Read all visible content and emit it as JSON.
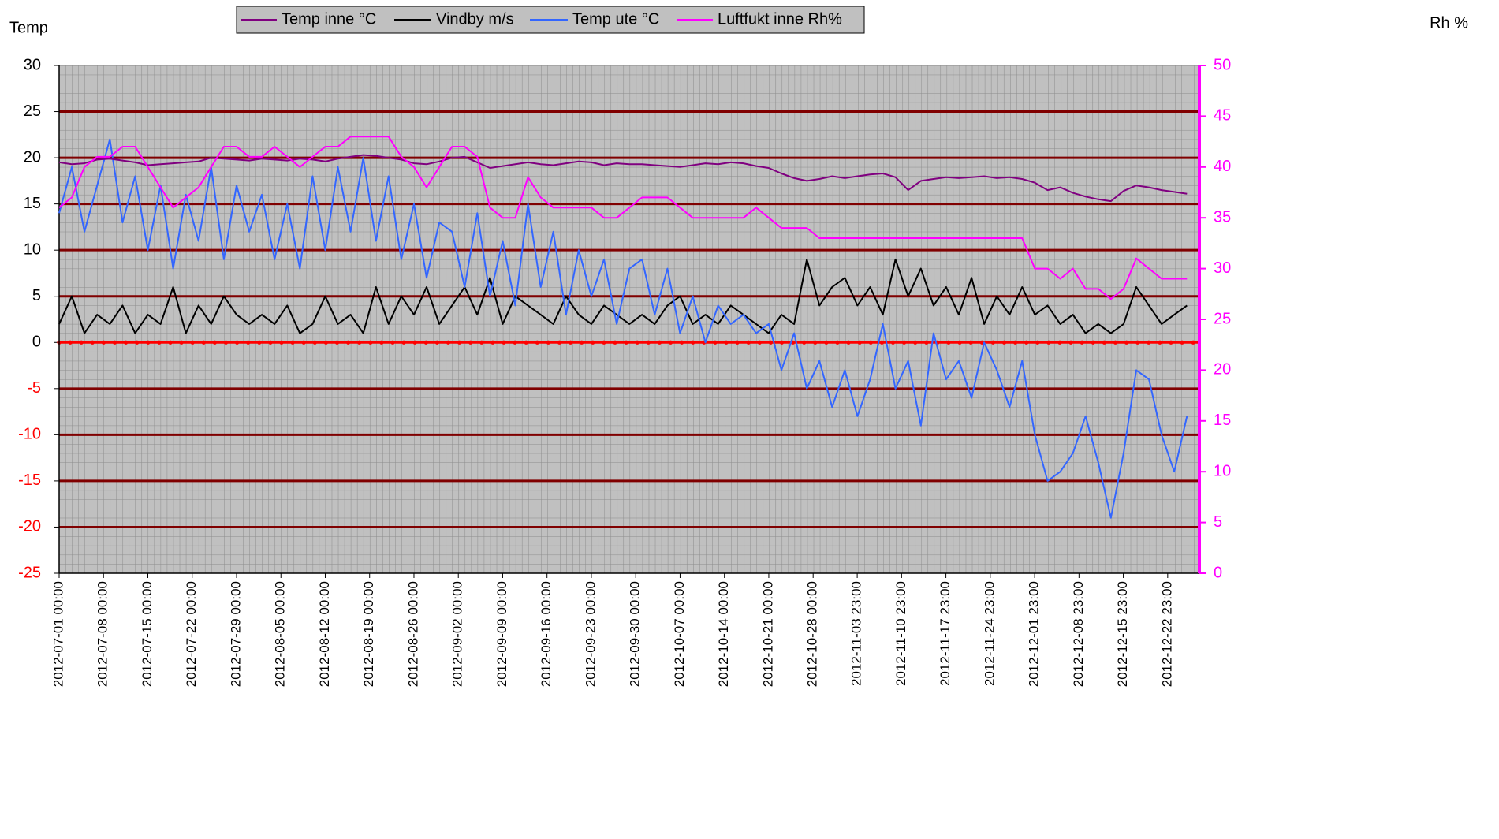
{
  "chart_data": {
    "type": "line",
    "ylabel": "Temp",
    "y2label": "Rh %",
    "x": [
      "2012-07-01 00:00",
      "2012-07-03 00:00",
      "2012-07-05 00:00",
      "2012-07-07 00:00",
      "2012-07-09 00:00",
      "2012-07-11 00:00",
      "2012-07-13 00:00",
      "2012-07-15 00:00",
      "2012-07-17 00:00",
      "2012-07-19 00:00",
      "2012-07-21 00:00",
      "2012-07-23 00:00",
      "2012-07-25 00:00",
      "2012-07-27 00:00",
      "2012-07-29 00:00",
      "2012-07-31 00:00",
      "2012-08-02 00:00",
      "2012-08-04 00:00",
      "2012-08-06 00:00",
      "2012-08-08 00:00",
      "2012-08-10 00:00",
      "2012-08-12 00:00",
      "2012-08-14 00:00",
      "2012-08-16 00:00",
      "2012-08-18 00:00",
      "2012-08-20 00:00",
      "2012-08-22 00:00",
      "2012-08-24 00:00",
      "2012-08-26 00:00",
      "2012-08-28 00:00",
      "2012-08-30 00:00",
      "2012-09-01 00:00",
      "2012-09-03 00:00",
      "2012-09-05 00:00",
      "2012-09-07 00:00",
      "2012-09-09 00:00",
      "2012-09-11 00:00",
      "2012-09-13 00:00",
      "2012-09-15 00:00",
      "2012-09-17 00:00",
      "2012-09-19 00:00",
      "2012-09-21 00:00",
      "2012-09-23 00:00",
      "2012-09-25 00:00",
      "2012-09-27 00:00",
      "2012-09-29 00:00",
      "2012-10-01 00:00",
      "2012-10-03 00:00",
      "2012-10-05 00:00",
      "2012-10-07 00:00",
      "2012-10-09 00:00",
      "2012-10-11 00:00",
      "2012-10-13 00:00",
      "2012-10-15 00:00",
      "2012-10-17 00:00",
      "2012-10-19 00:00",
      "2012-10-21 00:00",
      "2012-10-23 00:00",
      "2012-10-25 00:00",
      "2012-10-27 00:00",
      "2012-10-29 00:00",
      "2012-10-31 00:00",
      "2012-11-02 00:00",
      "2012-11-04 00:00",
      "2012-11-06 00:00",
      "2012-11-08 00:00",
      "2012-11-10 00:00",
      "2012-11-12 00:00",
      "2012-11-14 00:00",
      "2012-11-16 00:00",
      "2012-11-18 00:00",
      "2012-11-20 00:00",
      "2012-11-22 00:00",
      "2012-11-24 00:00",
      "2012-11-26 00:00",
      "2012-11-28 00:00",
      "2012-11-30 00:00",
      "2012-12-02 00:00",
      "2012-12-04 00:00",
      "2012-12-06 00:00",
      "2012-12-08 00:00",
      "2012-12-10 00:00",
      "2012-12-12 00:00",
      "2012-12-14 00:00",
      "2012-12-16 00:00",
      "2012-12-18 00:00",
      "2012-12-20 00:00",
      "2012-12-22 00:00",
      "2012-12-24 00:00",
      "2012-12-26 00:00"
    ],
    "series": [
      {
        "name": "Temp inne °C",
        "color": "#800080",
        "values": [
          19.5,
          19.3,
          19.4,
          19.8,
          19.9,
          19.7,
          19.5,
          19.2,
          19.3,
          19.4,
          19.5,
          19.6,
          20.0,
          19.9,
          19.8,
          19.7,
          19.9,
          19.8,
          19.7,
          19.9,
          19.8,
          19.6,
          19.9,
          20.1,
          20.3,
          20.2,
          20.0,
          19.8,
          19.4,
          19.3,
          19.6,
          20.0,
          20.1,
          19.5,
          18.9,
          19.1,
          19.3,
          19.5,
          19.3,
          19.2,
          19.4,
          19.6,
          19.5,
          19.2,
          19.4,
          19.3,
          19.3,
          19.2,
          19.1,
          19.0,
          19.2,
          19.4,
          19.3,
          19.5,
          19.4,
          19.1,
          18.9,
          18.3,
          17.8,
          17.5,
          17.7,
          18.0,
          17.8,
          18.0,
          18.2,
          18.3,
          17.9,
          16.5,
          17.5,
          17.7,
          17.9,
          17.8,
          17.9,
          18.0,
          17.8,
          17.9,
          17.7,
          17.3,
          16.5,
          16.8,
          16.2,
          15.8,
          15.5,
          15.3,
          16.4,
          17.0,
          16.8,
          16.5,
          16.3,
          16.1
        ]
      },
      {
        "name": "Vindby m/s",
        "color": "#000000",
        "values": [
          2,
          5,
          1,
          3,
          2,
          4,
          1,
          3,
          2,
          6,
          1,
          4,
          2,
          5,
          3,
          2,
          3,
          2,
          4,
          1,
          2,
          5,
          2,
          3,
          1,
          6,
          2,
          5,
          3,
          6,
          2,
          4,
          6,
          3,
          7,
          2,
          5,
          4,
          3,
          2,
          5,
          3,
          2,
          4,
          3,
          2,
          3,
          2,
          4,
          5,
          2,
          3,
          2,
          4,
          3,
          2,
          1,
          3,
          2,
          9,
          4,
          6,
          7,
          4,
          6,
          3,
          9,
          5,
          8,
          4,
          6,
          3,
          7,
          2,
          5,
          3,
          6,
          3,
          4,
          2,
          3,
          1,
          2,
          1,
          2,
          6,
          4,
          2,
          3,
          4
        ]
      },
      {
        "name": "Temp ute °C",
        "color": "#3366ff",
        "values": [
          14,
          19,
          12,
          17,
          22,
          13,
          18,
          10,
          17,
          8,
          16,
          11,
          19,
          9,
          17,
          12,
          16,
          9,
          15,
          8,
          18,
          10,
          19,
          12,
          20,
          11,
          18,
          9,
          15,
          7,
          13,
          12,
          6,
          14,
          5,
          11,
          4,
          15,
          6,
          12,
          3,
          10,
          5,
          9,
          2,
          8,
          9,
          3,
          8,
          1,
          5,
          0,
          4,
          2,
          3,
          1,
          2,
          -3,
          1,
          -5,
          -2,
          -7,
          -3,
          -8,
          -4,
          2,
          -5,
          -2,
          -9,
          1,
          -4,
          -2,
          -6,
          0,
          -3,
          -7,
          -2,
          -10,
          -15,
          -14,
          -12,
          -8,
          -13,
          -19,
          -12,
          -3,
          -4,
          -10,
          -14,
          -8
        ]
      },
      {
        "name": "Luftfukt inne Rh%",
        "color": "#ff00ff",
        "axis": "y2",
        "values": [
          36,
          37,
          40,
          41,
          41,
          42,
          42,
          40,
          38,
          36,
          37,
          38,
          40,
          42,
          42,
          41,
          41,
          42,
          41,
          40,
          41,
          42,
          42,
          43,
          43,
          43,
          43,
          41,
          40,
          38,
          40,
          42,
          42,
          41,
          36,
          35,
          35,
          39,
          37,
          36,
          36,
          36,
          36,
          35,
          35,
          36,
          37,
          37,
          37,
          36,
          35,
          35,
          35,
          35,
          35,
          36,
          35,
          34,
          34,
          34,
          33,
          33,
          33,
          33,
          33,
          33,
          33,
          33,
          33,
          33,
          33,
          33,
          33,
          33,
          33,
          33,
          33,
          30,
          30,
          29,
          30,
          28,
          28,
          27,
          28,
          31,
          30,
          29,
          29,
          29
        ]
      }
    ],
    "xlim": [
      "2012-07-01 00:00",
      "2012-12-27 23:00"
    ],
    "xticks": [
      "2012-07-01 00:00",
      "2012-07-08 00:00",
      "2012-07-15 00:00",
      "2012-07-22 00:00",
      "2012-07-29 00:00",
      "2012-08-05 00:00",
      "2012-08-12 00:00",
      "2012-08-19 00:00",
      "2012-08-26 00:00",
      "2012-09-02 00:00",
      "2012-09-09 00:00",
      "2012-09-16 00:00",
      "2012-09-23 00:00",
      "2012-09-30 00:00",
      "2012-10-07 00:00",
      "2012-10-14 00:00",
      "2012-10-21 00:00",
      "2012-10-28 00:00",
      "2012-11-03 23:00",
      "2012-11-10 23:00",
      "2012-11-17 23:00",
      "2012-11-24 23:00",
      "2012-12-01 23:00",
      "2012-12-08 23:00",
      "2012-12-15 23:00",
      "2012-12-22 23:00"
    ],
    "ylim": [
      -25,
      30
    ],
    "yticks": [
      -25,
      -20,
      -15,
      -10,
      -5,
      0,
      5,
      10,
      15,
      20,
      25,
      30
    ],
    "y2lim": [
      0,
      50
    ],
    "y2ticks": [
      0,
      5,
      10,
      15,
      20,
      25,
      30,
      35,
      40,
      45,
      50
    ],
    "grid": true,
    "legend": "top"
  }
}
